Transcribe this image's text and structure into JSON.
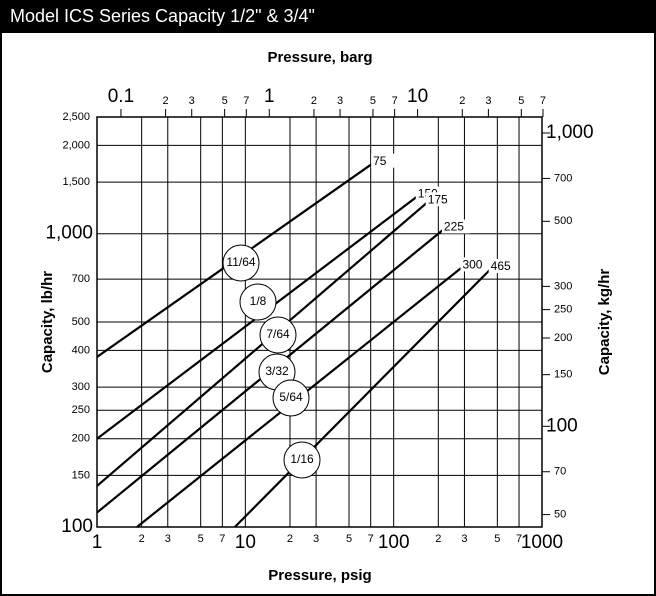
{
  "chart_data": {
    "type": "line",
    "title": "Model ICS Series Capacity 1/2\" & 3/4\"",
    "x2_label": "Pressure, barg",
    "x_label": "Pressure, psig",
    "y_label": "Capacity, lb/hr",
    "y2_label": "Capacity, kg/hr",
    "log_x": true,
    "log_y": true,
    "grid": true,
    "xlim": [
      1,
      1000
    ],
    "xticks": [
      1,
      2,
      3,
      5,
      7,
      10,
      {
        "value": 20,
        "label": "2"
      },
      {
        "value": 30,
        "label": "3"
      },
      {
        "value": 50,
        "label": "5"
      },
      {
        "value": 70,
        "label": "7"
      },
      100,
      {
        "value": 200,
        "label": "2"
      },
      {
        "value": 300,
        "label": "3"
      },
      {
        "value": 500,
        "label": "5"
      },
      {
        "value": 700,
        "label": "7"
      },
      1000
    ],
    "x2lim": [
      0.06895,
      68.95
    ],
    "x2ticks": [
      0.1,
      {
        "value": 0.2,
        "label": "2"
      },
      {
        "value": 0.3,
        "label": "3"
      },
      {
        "value": 0.5,
        "label": "5"
      },
      {
        "value": 0.7,
        "label": "7"
      },
      1,
      2,
      3,
      5,
      7,
      10,
      {
        "value": 20,
        "label": "2"
      },
      {
        "value": 30,
        "label": "3"
      },
      {
        "value": 50,
        "label": "5"
      },
      {
        "value": 70,
        "label": "7"
      }
    ],
    "ylim": [
      100,
      2500
    ],
    "yticks": [
      100,
      150,
      200,
      250,
      300,
      400,
      500,
      700,
      {
        "value": 1000,
        "label": "1,000"
      },
      {
        "value": 1500,
        "label": "1,500"
      },
      {
        "value": 2000,
        "label": "2,000"
      },
      {
        "value": 2500,
        "label": "2,500"
      }
    ],
    "y2lim": [
      45.36,
      1134
    ],
    "y2ticks": [
      50,
      70,
      100,
      150,
      200,
      250,
      300,
      500,
      700,
      {
        "value": 1000,
        "label": "1,000"
      }
    ],
    "series": [
      {
        "name": "11/64",
        "end_label": "75",
        "color": "#000000",
        "x": [
          1,
          75
        ],
        "values": [
          380,
          1760
        ]
      },
      {
        "name": "1/8",
        "end_label": "150",
        "color": "#000000",
        "x": [
          1,
          150
        ],
        "values": [
          200,
          1360
        ]
      },
      {
        "name": "7/64",
        "end_label": "175",
        "color": "#000000",
        "x": [
          1,
          175
        ],
        "values": [
          138,
          1300
        ]
      },
      {
        "name": "3/32",
        "end_label": "225",
        "color": "#000000",
        "x": [
          1,
          225
        ],
        "values": [
          112,
          1050
        ]
      },
      {
        "name": "5/64",
        "end_label": "300",
        "color": "#000000",
        "x": [
          1.86,
          300
        ],
        "values": [
          100,
          780
        ]
      },
      {
        "name": "1/16",
        "end_label": "465",
        "color": "#000000",
        "x": [
          8.5,
          465
        ],
        "values": [
          100,
          770
        ]
      }
    ]
  }
}
